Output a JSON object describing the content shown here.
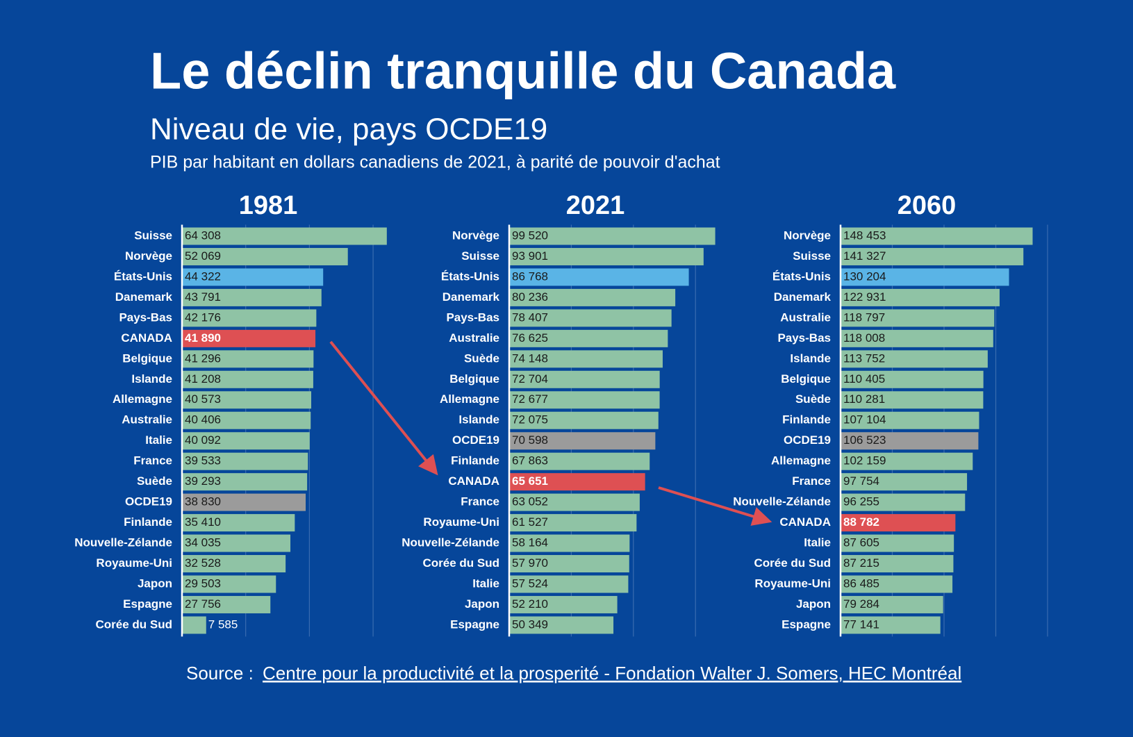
{
  "title": "Le déclin tranquille du Canada",
  "subtitle": "Niveau de vie, pays OCDE19",
  "description": "PIB par habitant en dollars canadiens de 2021, à parité de pouvoir d'achat",
  "source_prefix": "Source :",
  "source_link": "Centre pour la productivité et la prosperité - Fondation Walter J. Somers, HEC Montréal",
  "chart_data": [
    {
      "type": "bar",
      "orientation": "horizontal",
      "title": "1981",
      "categories": [
        "Suisse",
        "Norvège",
        "États-Unis",
        "Danemark",
        "Pays-Bas",
        "CANADA",
        "Belgique",
        "Islande",
        "Allemagne",
        "Australie",
        "Italie",
        "France",
        "Suède",
        "OCDE19",
        "Finlande",
        "Nouvelle-Zélande",
        "Royaume-Uni",
        "Japon",
        "Espagne",
        "Corée du Sud"
      ],
      "values": [
        64308,
        52069,
        44322,
        43791,
        42176,
        41890,
        41296,
        41208,
        40573,
        40406,
        40092,
        39533,
        39293,
        38830,
        35410,
        34035,
        32528,
        29503,
        27756,
        7585
      ],
      "value_labels": [
        "64 308",
        "52 069",
        "44 322",
        "43 791",
        "42 176",
        "41 890",
        "41 296",
        "41 208",
        "40 573",
        "40 406",
        "40 092",
        "39 533",
        "39 293",
        "38 830",
        "35 410",
        "34 035",
        "32 528",
        "29 503",
        "27 756",
        "7 585"
      ],
      "colors": [
        "#8fc3a5",
        "#8fc3a5",
        "#5ab4e6",
        "#8fc3a5",
        "#8fc3a5",
        "#de5053",
        "#8fc3a5",
        "#8fc3a5",
        "#8fc3a5",
        "#8fc3a5",
        "#8fc3a5",
        "#8fc3a5",
        "#8fc3a5",
        "#9b9b9b",
        "#8fc3a5",
        "#8fc3a5",
        "#8fc3a5",
        "#8fc3a5",
        "#8fc3a5",
        "#8fc3a5"
      ],
      "xlim": [
        0,
        65000
      ],
      "xticks": [
        0,
        20000,
        40000,
        60000
      ],
      "grid": true
    },
    {
      "type": "bar",
      "orientation": "horizontal",
      "title": "2021",
      "categories": [
        "Norvège",
        "Suisse",
        "États-Unis",
        "Danemark",
        "Pays-Bas",
        "Australie",
        "Suède",
        "Belgique",
        "Allemagne",
        "Islande",
        "OCDE19",
        "Finlande",
        "CANADA",
        "France",
        "Royaume-Uni",
        "Nouvelle-Zélande",
        "Corée du Sud",
        "Italie",
        "Japon",
        "Espagne"
      ],
      "values": [
        99520,
        93901,
        86768,
        80236,
        78407,
        76625,
        74148,
        72704,
        72677,
        72075,
        70598,
        67863,
        65651,
        63052,
        61527,
        58164,
        57970,
        57524,
        52210,
        50349
      ],
      "value_labels": [
        "99 520",
        "93 901",
        "86 768",
        "80 236",
        "78 407",
        "76 625",
        "74 148",
        "72 704",
        "72 677",
        "72 075",
        "70 598",
        "67 863",
        "65 651",
        "63 052",
        "61 527",
        "58 164",
        "57 970",
        "57 524",
        "52 210",
        "50 349"
      ],
      "colors": [
        "#8fc3a5",
        "#8fc3a5",
        "#5ab4e6",
        "#8fc3a5",
        "#8fc3a5",
        "#8fc3a5",
        "#8fc3a5",
        "#8fc3a5",
        "#8fc3a5",
        "#8fc3a5",
        "#9b9b9b",
        "#8fc3a5",
        "#de5053",
        "#8fc3a5",
        "#8fc3a5",
        "#8fc3a5",
        "#8fc3a5",
        "#8fc3a5",
        "#8fc3a5",
        "#8fc3a5"
      ],
      "xlim": [
        0,
        100000
      ],
      "xticks": [
        0,
        30000,
        60000,
        90000
      ],
      "grid": true
    },
    {
      "type": "bar",
      "orientation": "horizontal",
      "title": "2060",
      "categories": [
        "Norvège",
        "Suisse",
        "États-Unis",
        "Danemark",
        "Australie",
        "Pays-Bas",
        "Islande",
        "Belgique",
        "Suède",
        "Finlande",
        "OCDE19",
        "Allemagne",
        "France",
        "Nouvelle-Zélande",
        "CANADA",
        "Italie",
        "Corée du Sud",
        "Royaume-Uni",
        "Japon",
        "Espagne"
      ],
      "values": [
        148453,
        141327,
        130204,
        122931,
        118797,
        118008,
        113752,
        110405,
        110281,
        107104,
        106523,
        102159,
        97754,
        96255,
        88782,
        87605,
        87215,
        86485,
        79284,
        77141
      ],
      "value_labels": [
        "148 453",
        "141 327",
        "130 204",
        "122 931",
        "118 797",
        "118 008",
        "113 752",
        "110 405",
        "110 281",
        "107 104",
        "106 523",
        "102 159",
        "97 754",
        "96 255",
        "88 782",
        "87 605",
        "87 215",
        "86 485",
        "79 284",
        "77 141"
      ],
      "colors": [
        "#8fc3a5",
        "#8fc3a5",
        "#5ab4e6",
        "#8fc3a5",
        "#8fc3a5",
        "#8fc3a5",
        "#8fc3a5",
        "#8fc3a5",
        "#8fc3a5",
        "#8fc3a5",
        "#9b9b9b",
        "#8fc3a5",
        "#8fc3a5",
        "#8fc3a5",
        "#de5053",
        "#8fc3a5",
        "#8fc3a5",
        "#8fc3a5",
        "#8fc3a5",
        "#8fc3a5"
      ],
      "xlim": [
        0,
        160000
      ],
      "xticks": [
        0,
        40000,
        80000,
        120000,
        160000
      ],
      "grid": true
    }
  ]
}
